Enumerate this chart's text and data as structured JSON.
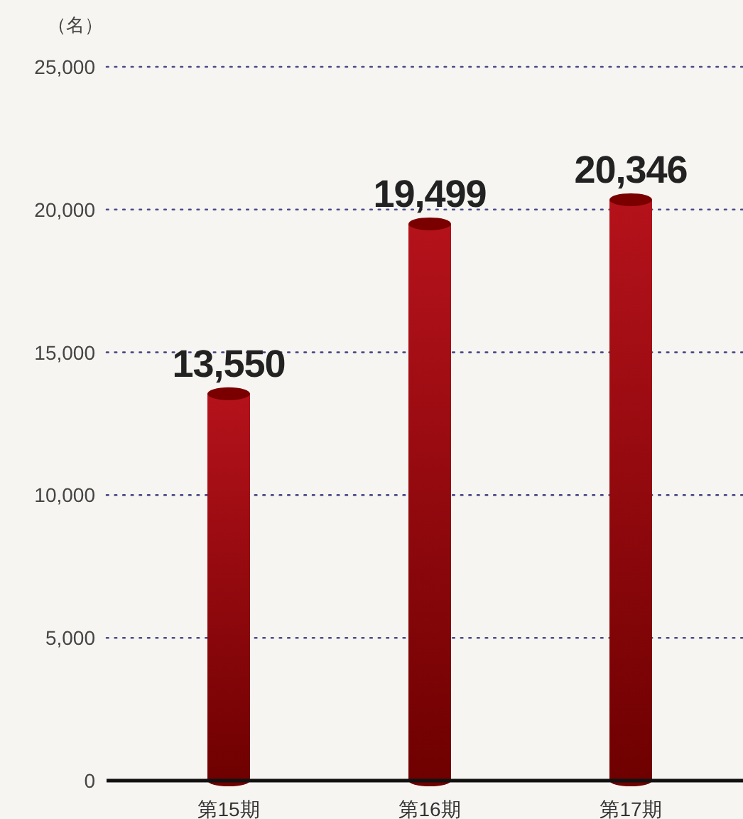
{
  "chart_data": {
    "type": "bar",
    "ylabel": "（名）",
    "categories": [
      "第15期",
      "第16期",
      "第17期"
    ],
    "values": [
      13550,
      19499,
      20346
    ],
    "value_labels": [
      "13,550",
      "19,499",
      "20,346"
    ],
    "color": "#b5121b",
    "ylim": [
      0,
      25000
    ],
    "yticks": [
      0,
      {
        "value": 5000,
        "label": "5,000"
      },
      {
        "value": 10000,
        "label": "10,000"
      },
      {
        "value": 15000,
        "label": "15,000"
      },
      {
        "value": 20000,
        "label": "20,000"
      },
      {
        "value": 25000,
        "label": "25,000"
      }
    ],
    "grid": "y"
  }
}
